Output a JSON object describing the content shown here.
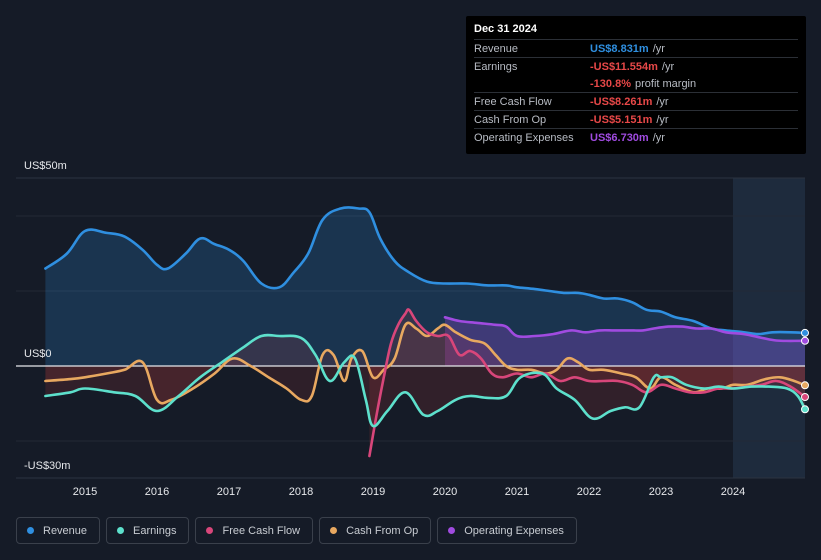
{
  "colors": {
    "revenue": "#2f8fe0",
    "earnings": "#5de0cc",
    "free_cash_flow": "#d8467a",
    "cash_from_op": "#e8a860",
    "operating_expenses": "#a04be0"
  },
  "tooltip": {
    "date": "Dec 31 2024",
    "rows": [
      {
        "label": "Revenue",
        "value": "US$8.831m",
        "unit": "/yr",
        "color": "#2f8fe0"
      },
      {
        "label": "Earnings",
        "value": "-US$11.554m",
        "unit": "/yr",
        "color": "#e84848"
      },
      {
        "label": "",
        "value": "-130.8%",
        "unit": "profit margin",
        "color": "#e84848"
      },
      {
        "label": "Free Cash Flow",
        "value": "-US$8.261m",
        "unit": "/yr",
        "color": "#e84848"
      },
      {
        "label": "Cash From Op",
        "value": "-US$5.151m",
        "unit": "/yr",
        "color": "#e84848"
      },
      {
        "label": "Operating Expenses",
        "value": "US$6.730m",
        "unit": "/yr",
        "color": "#a04be0"
      }
    ]
  },
  "legend": [
    {
      "label": "Revenue",
      "color": "#2f8fe0"
    },
    {
      "label": "Earnings",
      "color": "#5de0cc"
    },
    {
      "label": "Free Cash Flow",
      "color": "#d8467a"
    },
    {
      "label": "Cash From Op",
      "color": "#e8a860"
    },
    {
      "label": "Operating Expenses",
      "color": "#a04be0"
    }
  ],
  "chart_data": {
    "type": "area",
    "title": "",
    "xlabel": "",
    "ylabel": "",
    "y_labels": {
      "top": "US$50m",
      "zero": "US$0",
      "bottom": "-US$30m"
    },
    "xlim": [
      2014.0,
      2025.0
    ],
    "ylim": [
      -30,
      50
    ],
    "x_ticks": [
      2015,
      2016,
      2017,
      2018,
      2019,
      2020,
      2021,
      2022,
      2023,
      2024
    ],
    "x_tick_labels": [
      "2015",
      "2016",
      "2017",
      "2018",
      "2019",
      "2020",
      "2021",
      "2022",
      "2023",
      "2024"
    ],
    "highlight_start": 2024.0,
    "series": [
      {
        "name": "Revenue",
        "x": [
          2014.45,
          2014.75,
          2015.0,
          2015.3,
          2015.55,
          2015.8,
          2016.0,
          2016.15,
          2016.4,
          2016.6,
          2016.8,
          2017.0,
          2017.2,
          2017.45,
          2017.7,
          2017.9,
          2018.1,
          2018.3,
          2018.55,
          2018.8,
          2018.95,
          2019.1,
          2019.3,
          2019.5,
          2019.75,
          2020.0,
          2020.3,
          2020.6,
          2020.85,
          2021.0,
          2021.25,
          2021.45,
          2021.65,
          2021.85,
          2022.0,
          2022.2,
          2022.4,
          2022.6,
          2022.8,
          2023.0,
          2023.2,
          2023.45,
          2023.7,
          2023.9,
          2024.15,
          2024.35,
          2024.55,
          2024.8,
          2025.0
        ],
        "values": [
          26,
          30,
          36,
          35.5,
          34.5,
          31,
          27,
          26,
          30,
          34,
          32.5,
          31,
          28,
          22,
          21,
          25,
          30,
          39,
          42,
          42,
          41,
          34,
          28,
          25,
          22.5,
          22,
          22,
          21.5,
          21.5,
          21,
          20.5,
          20,
          19.5,
          19.5,
          19,
          18,
          18,
          17,
          15,
          14.5,
          13,
          12,
          10,
          9.5,
          9,
          8.5,
          9,
          9,
          8.83
        ]
      },
      {
        "name": "Earnings",
        "x": [
          2014.45,
          2014.8,
          2015.0,
          2015.4,
          2015.7,
          2016.0,
          2016.3,
          2016.6,
          2016.9,
          2017.2,
          2017.45,
          2017.7,
          2018.0,
          2018.2,
          2018.4,
          2018.6,
          2018.75,
          2018.9,
          2019.0,
          2019.2,
          2019.45,
          2019.7,
          2019.9,
          2020.15,
          2020.35,
          2020.6,
          2020.85,
          2021.05,
          2021.35,
          2021.55,
          2021.8,
          2022.05,
          2022.3,
          2022.5,
          2022.7,
          2022.9,
          2023.0,
          2023.15,
          2023.35,
          2023.6,
          2023.8,
          2024.0,
          2024.25,
          2024.5,
          2024.75,
          2024.9,
          2025.0
        ],
        "values": [
          -8,
          -7,
          -6,
          -7,
          -8,
          -12,
          -8,
          -3,
          1,
          5,
          8,
          8,
          7.5,
          3,
          -4,
          1,
          2,
          -9,
          -16,
          -12,
          -7,
          -13,
          -12,
          -9,
          -8,
          -8.5,
          -8,
          -3,
          -2,
          -6,
          -9,
          -14,
          -12,
          -11,
          -11,
          -3,
          -3,
          -3,
          -5,
          -6,
          -5.5,
          -6,
          -5.5,
          -5.5,
          -6,
          -8,
          -11.55
        ]
      },
      {
        "name": "Free Cash Flow",
        "x": [
          2018.95,
          2019.05,
          2019.15,
          2019.25,
          2019.35,
          2019.45,
          2019.5,
          2019.6,
          2019.75,
          2019.9,
          2020.05,
          2020.2,
          2020.35,
          2020.5,
          2020.65,
          2020.8,
          2021.0,
          2021.2,
          2021.4,
          2021.6,
          2021.8,
          2022.0,
          2022.2,
          2022.4,
          2022.6,
          2022.8,
          2023.0,
          2023.2,
          2023.4,
          2023.6,
          2023.8,
          2024.0,
          2024.2,
          2024.4,
          2024.6,
          2024.8,
          2025.0
        ],
        "values": [
          -24,
          -13,
          -3,
          6,
          11,
          14,
          15,
          12,
          9,
          8,
          8,
          3,
          4,
          2,
          -2,
          -3,
          -2,
          -3,
          -2,
          -4,
          -3,
          -4,
          -4,
          -4,
          -5,
          -7,
          -5,
          -6,
          -7,
          -7,
          -6,
          -6,
          -5.5,
          -5,
          -4,
          -5.5,
          -8.26
        ]
      },
      {
        "name": "Cash From Op",
        "x": [
          2014.45,
          2014.8,
          2015.0,
          2015.3,
          2015.55,
          2015.8,
          2016.0,
          2016.2,
          2016.5,
          2016.8,
          2017.05,
          2017.3,
          2017.55,
          2017.8,
          2018.0,
          2018.15,
          2018.3,
          2018.45,
          2018.6,
          2018.7,
          2018.85,
          2019.0,
          2019.15,
          2019.3,
          2019.45,
          2019.6,
          2019.75,
          2019.9,
          2020.0,
          2020.15,
          2020.35,
          2020.55,
          2020.7,
          2020.85,
          2021.0,
          2021.2,
          2021.4,
          2021.55,
          2021.7,
          2021.85,
          2022.0,
          2022.2,
          2022.45,
          2022.65,
          2022.85,
          2023.0,
          2023.2,
          2023.45,
          2023.65,
          2023.85,
          2024.0,
          2024.2,
          2024.45,
          2024.65,
          2024.85,
          2025.0
        ],
        "values": [
          -4,
          -3.5,
          -3,
          -2,
          -1,
          1,
          -9,
          -9,
          -6,
          -2,
          2,
          0,
          -3,
          -6,
          -9,
          -8,
          3,
          3,
          -4,
          2,
          4,
          -3,
          -1,
          2,
          11,
          10,
          8,
          10,
          11,
          9,
          7,
          6,
          3,
          0,
          -1,
          -1,
          -2,
          -1,
          2,
          1,
          -1,
          -1,
          -2,
          -3,
          -6,
          -3,
          -5,
          -7,
          -6,
          -6,
          -5,
          -5,
          -3.5,
          -3,
          -4,
          -5.15
        ]
      },
      {
        "name": "Operating Expenses",
        "x": [
          2020.0,
          2020.2,
          2020.45,
          2020.7,
          2020.85,
          2021.0,
          2021.25,
          2021.5,
          2021.75,
          2021.95,
          2022.15,
          2022.35,
          2022.55,
          2022.75,
          2022.9,
          2023.1,
          2023.3,
          2023.5,
          2023.7,
          2023.9,
          2024.15,
          2024.4,
          2024.6,
          2024.8,
          2025.0
        ],
        "values": [
          13,
          12,
          11.5,
          11,
          10.5,
          8,
          8,
          8.5,
          9.5,
          9,
          9.5,
          9.5,
          9.5,
          9.5,
          10,
          10.5,
          10.5,
          10,
          10,
          9,
          8.5,
          7.5,
          6.8,
          6.7,
          6.73
        ]
      }
    ]
  }
}
